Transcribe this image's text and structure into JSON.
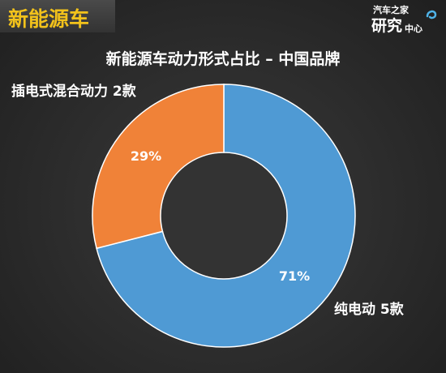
{
  "header": {
    "tag": "新能源车"
  },
  "logo": {
    "line1": "汽车之家",
    "line2": "研究",
    "line3": "中心"
  },
  "colors": {
    "bev": "#4f9ad4",
    "phev": "#f08238",
    "tag": "#f2c21b",
    "background": "#2e2e2e"
  },
  "chart_data": {
    "type": "pie",
    "title": "新能源车动力形式占比 – 中国品牌",
    "donut": true,
    "series": [
      {
        "name": "纯电动",
        "count_label": "5款",
        "percent_label": "71%",
        "value": 71,
        "color": "#4f9ad4"
      },
      {
        "name": "插电式混合动力",
        "count_label": "2款",
        "percent_label": "29%",
        "value": 29,
        "color": "#f08238"
      }
    ]
  }
}
